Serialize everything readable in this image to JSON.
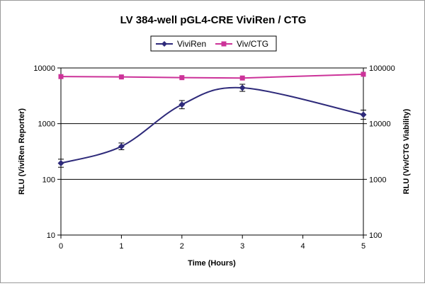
{
  "chart_data": {
    "type": "line",
    "title": "LV 384-well pGL4-CRE ViviRen / CTG",
    "xlabel": "Time (Hours)",
    "ylabel": "RLU (ViviRen Reporter)",
    "y2label": "RLU (Viv/CTG Viability)",
    "x": [
      0,
      1,
      2,
      3,
      4,
      5
    ],
    "x_ticks": [
      "0",
      "1",
      "2",
      "3",
      "4",
      "5"
    ],
    "xlim": [
      0,
      5
    ],
    "ylim": [
      10,
      10000
    ],
    "y_scale": "log",
    "y_ticks": [
      "10",
      "100",
      "1000",
      "10000"
    ],
    "y2lim": [
      100,
      100000
    ],
    "y2_scale": "log",
    "y2_ticks": [
      "100",
      "1000",
      "10000",
      "100000"
    ],
    "grid": "horizontal major gridlines",
    "legend_position": "top-center",
    "series": [
      {
        "name": "ViviRen",
        "axis": "left",
        "color": "#2e2a7a",
        "marker": "diamond",
        "smooth": true,
        "x": [
          0,
          1,
          2,
          3,
          5
        ],
        "values": [
          195,
          390,
          2200,
          4400,
          1450
        ],
        "error": [
          [
            165,
            230
          ],
          [
            340,
            450
          ],
          [
            1850,
            2600
          ],
          [
            3800,
            5100
          ],
          [
            1200,
            1750
          ]
        ]
      },
      {
        "name": "Viv/CTG",
        "axis": "right",
        "color": "#cc3399",
        "marker": "square",
        "smooth": false,
        "x": [
          0,
          1,
          2,
          3,
          5
        ],
        "values": [
          70000,
          69000,
          67000,
          66000,
          77000
        ]
      }
    ]
  }
}
